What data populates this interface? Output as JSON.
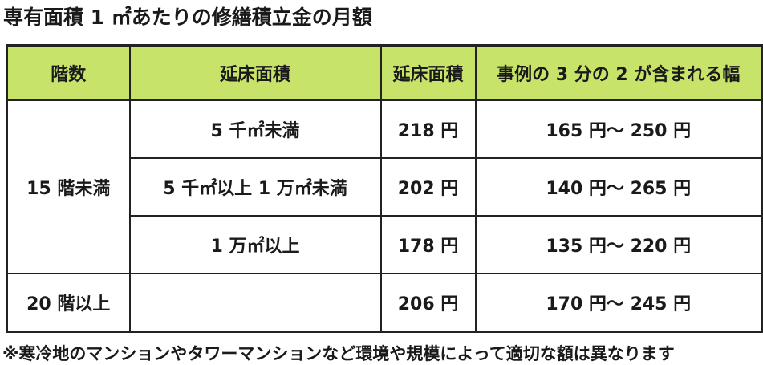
{
  "title": "専有面積 1 ㎡あたりの修繕積立金の月額",
  "table": {
    "headers": [
      "階数",
      "延床面積",
      "延床面積",
      "事例の 3 分の 2 が含まれる幅"
    ],
    "groups": [
      {
        "floors": "15 階未満",
        "rows": [
          {
            "area": "5 千㎡未満",
            "fee": "218 円",
            "range": "165 円～ 250 円"
          },
          {
            "area": "5 千㎡以上 1 万㎡未満",
            "fee": "202 円",
            "range": "140 円～ 265 円"
          },
          {
            "area": "1 万㎡以上",
            "fee": "178 円",
            "range": "135 円～ 220 円"
          }
        ]
      },
      {
        "floors": "20 階以上",
        "rows": [
          {
            "area": "",
            "fee": "206 円",
            "range": "170 円～ 245 円"
          }
        ]
      }
    ]
  },
  "note": "※寒冷地のマンションやタワーマンションなど環境や規模によって適切な額は異なります",
  "colors": {
    "header_bg": "#c8e36a",
    "border": "#222222"
  }
}
